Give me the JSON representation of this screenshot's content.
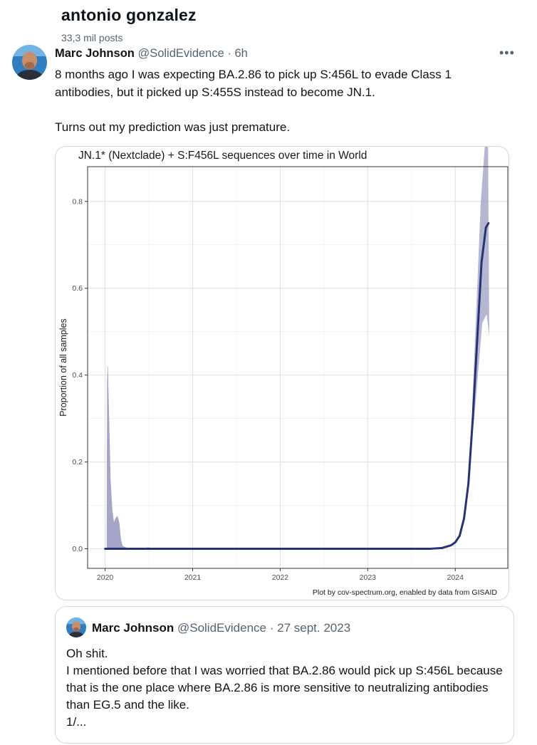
{
  "profile": {
    "name": "antonio gonzalez",
    "posts_count": "33,3 mil posts"
  },
  "tweet": {
    "author_name": "Marc Johnson",
    "handle": "@SolidEvidence",
    "separator": "·",
    "time": "6h",
    "more_icon": "more-horizontal-icon",
    "text": "8 months ago I was expecting BA.2.86 to pick up S:456L to evade Class 1 antibodies, but it picked up S:455S instead to become JN.1.\n\nTurns out my prediction was just premature."
  },
  "chart_data": {
    "type": "area",
    "title": "JN.1* (Nextclade) + S:F456L sequences over time in World",
    "xlabel": "",
    "ylabel": "Proportion of all samples",
    "caption": "Plot by cov-spectrum.org, enabled by data from GISAID",
    "x_ticks": [
      "2020",
      "2021",
      "2022",
      "2023",
      "2024"
    ],
    "y_ticks": [
      "0.0",
      "0.2",
      "0.4",
      "0.6",
      "0.8"
    ],
    "xlim": [
      2019.8,
      2024.6
    ],
    "ylim": [
      -0.045,
      0.88
    ],
    "grid": true,
    "colors": {
      "line": "#283275",
      "band": "#9c9dc1",
      "grid": "#ebebeb",
      "border": "#333333"
    },
    "series": [
      {
        "x": [
          2020.0,
          2020.15,
          2020.3,
          2020.6,
          2021.0,
          2022.0,
          2023.0,
          2023.7,
          2023.85,
          2023.95,
          2024.0,
          2024.05,
          2024.1,
          2024.15,
          2024.2,
          2024.25,
          2024.3,
          2024.35,
          2024.38
        ],
        "y": [
          0.0,
          0.0,
          0.0,
          0.0,
          0.0,
          0.0,
          0.0,
          0.0,
          0.002,
          0.008,
          0.015,
          0.03,
          0.07,
          0.15,
          0.3,
          0.48,
          0.66,
          0.74,
          0.75
        ]
      }
    ],
    "band": {
      "x": [
        2020.02,
        2020.025,
        2020.03,
        2020.04,
        2020.05,
        2020.06,
        2020.08,
        2020.1,
        2020.12,
        2020.14,
        2020.16,
        2020.18,
        2020.2,
        2020.25,
        2020.4,
        2020.5
      ],
      "upper": [
        0.0,
        0.38,
        0.42,
        0.33,
        0.25,
        0.16,
        0.09,
        0.06,
        0.07,
        0.075,
        0.06,
        0.02,
        0.006,
        0.002,
        0.0,
        0.003
      ]
    }
  },
  "quote": {
    "author_name": "Marc Johnson",
    "handle": "@SolidEvidence",
    "separator": "·",
    "date": "27 sept. 2023",
    "text": "Oh shit.\nI mentioned before that I was worried that BA.2.86 would pick up S:456L because that is the one place where BA.2.86 is more sensitive to neutralizing antibodies than EG.5 and the like.\n1/..."
  }
}
